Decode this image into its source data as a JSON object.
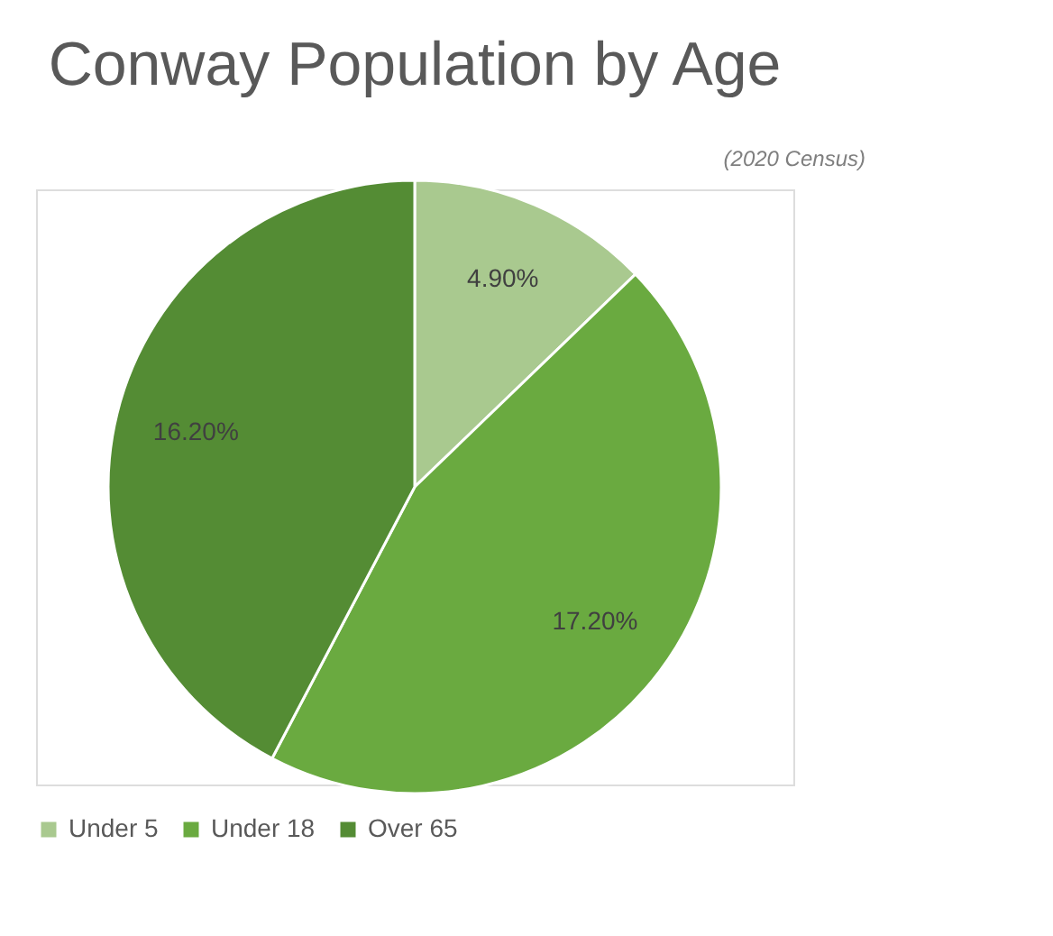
{
  "chart_data": {
    "type": "pie",
    "title": "Conway Population by Age",
    "subtitle": "(2020 Census)",
    "categories": [
      "Under 5",
      "Under 18",
      "Over 65"
    ],
    "values": [
      4.9,
      17.2,
      16.2
    ],
    "colors": [
      "#a9c98f",
      "#6aaa40",
      "#548c34"
    ],
    "value_labels": [
      "4.90%",
      "17.20%",
      "16.20%"
    ],
    "legend": "bottom"
  }
}
